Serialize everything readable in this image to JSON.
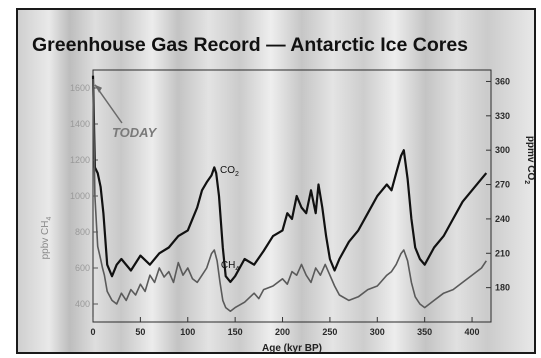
{
  "chart_data": {
    "type": "line",
    "title": "Greenhouse Gas Record — Antarctic Ice Cores",
    "xlabel": "Age (kyr BP)",
    "ylabel_left": "ppbv CH",
    "ylabel_left_sub": "4",
    "ylabel_right": "ppmv CO",
    "ylabel_right_sub": "2",
    "xlim": [
      0,
      420
    ],
    "ylim_left": [
      300,
      1700
    ],
    "ylim_right": [
      150,
      370
    ],
    "xticks": [
      0,
      50,
      100,
      150,
      200,
      250,
      300,
      350,
      400
    ],
    "yticks_left": [
      400,
      600,
      800,
      1000,
      1200,
      1400,
      1600
    ],
    "yticks_right": [
      180,
      210,
      240,
      270,
      300,
      330,
      360
    ],
    "annotation": {
      "text": "TODAY",
      "x": 0,
      "y_left": 1640
    },
    "series": [
      {
        "name": "CO",
        "name_sub": "2",
        "axis": "right",
        "color": "#111111",
        "x": [
          0,
          2,
          5,
          8,
          11,
          15,
          20,
          25,
          30,
          40,
          50,
          60,
          70,
          80,
          90,
          100,
          105,
          110,
          115,
          120,
          125,
          128,
          130,
          133,
          137,
          140,
          145,
          150,
          160,
          170,
          180,
          190,
          200,
          205,
          210,
          215,
          220,
          225,
          230,
          235,
          238,
          242,
          246,
          250,
          255,
          260,
          270,
          280,
          290,
          300,
          310,
          315,
          320,
          325,
          328,
          332,
          336,
          340,
          345,
          350,
          360,
          370,
          380,
          390,
          400,
          410,
          415
        ],
        "values": [
          365,
          285,
          280,
          268,
          245,
          200,
          190,
          200,
          205,
          195,
          208,
          200,
          210,
          215,
          225,
          230,
          240,
          250,
          265,
          272,
          278,
          285,
          280,
          260,
          215,
          190,
          185,
          190,
          205,
          200,
          212,
          225,
          230,
          245,
          240,
          260,
          250,
          245,
          265,
          245,
          270,
          250,
          225,
          205,
          195,
          205,
          220,
          230,
          245,
          260,
          270,
          265,
          280,
          295,
          300,
          275,
          240,
          215,
          205,
          200,
          215,
          225,
          240,
          255,
          265,
          275,
          280
        ]
      },
      {
        "name": "CH",
        "name_sub": "4",
        "axis": "left",
        "color": "#5a5a5a",
        "x": [
          0,
          2,
          5,
          8,
          10,
          12,
          15,
          20,
          25,
          30,
          35,
          40,
          45,
          50,
          55,
          60,
          65,
          70,
          75,
          80,
          85,
          90,
          95,
          100,
          105,
          110,
          115,
          120,
          125,
          128,
          131,
          134,
          137,
          140,
          145,
          150,
          160,
          170,
          175,
          180,
          190,
          200,
          205,
          210,
          215,
          220,
          225,
          230,
          235,
          240,
          245,
          250,
          255,
          260,
          270,
          280,
          290,
          300,
          310,
          315,
          320,
          325,
          328,
          332,
          336,
          340,
          345,
          350,
          360,
          370,
          380,
          390,
          400,
          410,
          415
        ],
        "values": [
          1650,
          1000,
          720,
          650,
          600,
          560,
          470,
          420,
          400,
          460,
          420,
          480,
          450,
          510,
          470,
          560,
          520,
          600,
          550,
          580,
          520,
          630,
          560,
          600,
          540,
          520,
          560,
          600,
          680,
          700,
          640,
          520,
          420,
          380,
          360,
          380,
          410,
          460,
          430,
          480,
          500,
          540,
          510,
          580,
          560,
          620,
          560,
          520,
          600,
          560,
          620,
          560,
          500,
          450,
          420,
          440,
          480,
          500,
          560,
          580,
          620,
          680,
          700,
          640,
          520,
          440,
          400,
          380,
          420,
          460,
          480,
          520,
          560,
          600,
          640
        ]
      }
    ]
  }
}
